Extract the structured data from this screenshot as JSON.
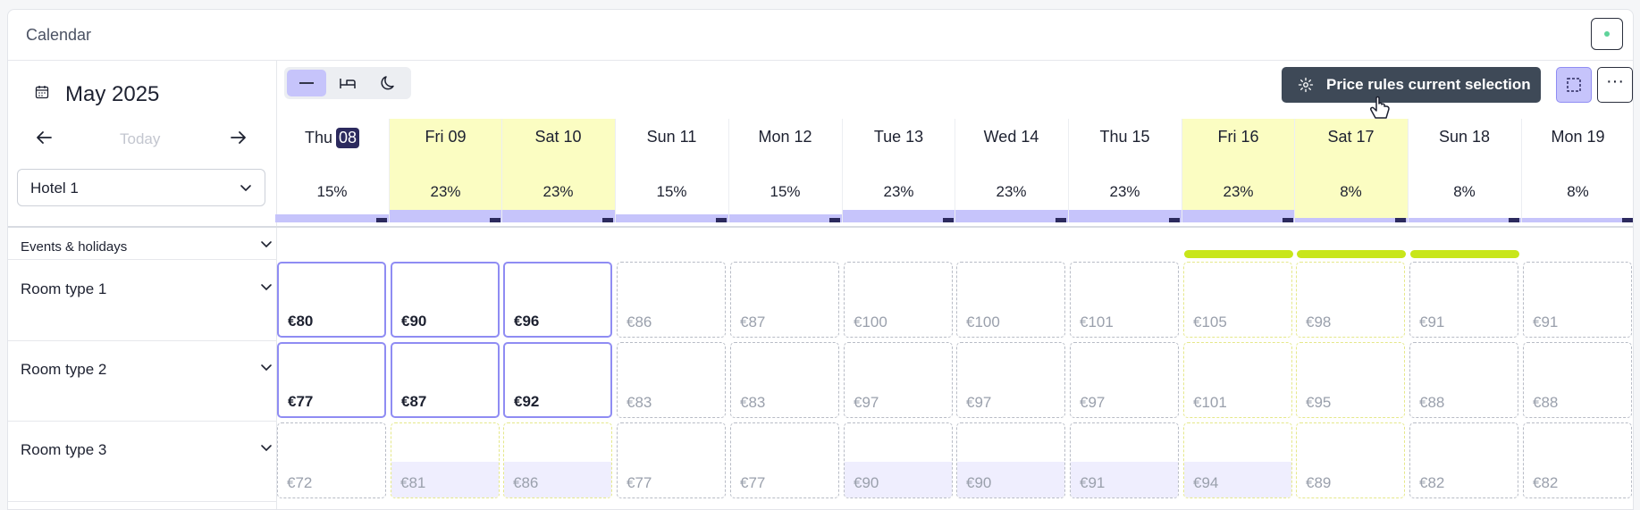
{
  "app": {
    "title": "Calendar"
  },
  "nav": {
    "month": "May 2025",
    "today_label": "Today"
  },
  "hotel": {
    "selected": "Hotel 1"
  },
  "toolbar": {
    "price_rules_label": "Price rules current selection",
    "more_label": "···"
  },
  "days": [
    {
      "label": "Thu",
      "num": "08",
      "today": true,
      "weekend": false,
      "occ": "15%",
      "bar": 0.15
    },
    {
      "label": "Fri 09",
      "weekend": true,
      "occ": "23%",
      "bar": 0.23
    },
    {
      "label": "Sat 10",
      "weekend": true,
      "occ": "23%",
      "bar": 0.23
    },
    {
      "label": "Sun 11",
      "weekend": false,
      "occ": "15%",
      "bar": 0.15
    },
    {
      "label": "Mon 12",
      "weekend": false,
      "occ": "15%",
      "bar": 0.15
    },
    {
      "label": "Tue 13",
      "weekend": false,
      "occ": "23%",
      "bar": 0.23
    },
    {
      "label": "Wed 14",
      "weekend": false,
      "occ": "23%",
      "bar": 0.23
    },
    {
      "label": "Thu 15",
      "weekend": false,
      "occ": "23%",
      "bar": 0.23
    },
    {
      "label": "Fri 16",
      "weekend": true,
      "occ": "23%",
      "bar": 0.23
    },
    {
      "label": "Sat 17",
      "weekend": true,
      "occ": "8%",
      "bar": 0.08
    },
    {
      "label": "Sun 18",
      "weekend": false,
      "occ": "8%",
      "bar": 0.08
    },
    {
      "label": "Mon 19",
      "weekend": false,
      "occ": "8%",
      "bar": 0.08
    }
  ],
  "events_row": {
    "label": "Events & holidays",
    "event_days": [
      8,
      9,
      10
    ]
  },
  "rooms": [
    {
      "label": "Room type 1",
      "prices": [
        "€80",
        "€90",
        "€96",
        "€86",
        "€87",
        "€100",
        "€100",
        "€101",
        "€105",
        "€98",
        "€91",
        "€91"
      ],
      "selected": [
        0,
        1,
        2
      ],
      "filled": []
    },
    {
      "label": "Room type 2",
      "prices": [
        "€77",
        "€87",
        "€92",
        "€83",
        "€83",
        "€97",
        "€97",
        "€97",
        "€101",
        "€95",
        "€88",
        "€88"
      ],
      "selected": [
        0,
        1,
        2
      ],
      "filled": []
    },
    {
      "label": "Room type 3",
      "prices": [
        "€72",
        "€81",
        "€86",
        "€77",
        "€77",
        "€90",
        "€90",
        "€91",
        "€94",
        "€89",
        "€82",
        "€82"
      ],
      "selected": [],
      "filled": [
        1,
        2,
        5,
        6,
        7,
        8
      ]
    }
  ],
  "colors": {
    "accent": "#c6c4fb",
    "accent_dark": "#2c2a5e",
    "weekend": "#fbfdc2",
    "event": "#c8e61a",
    "button_dark": "#3e4957"
  }
}
